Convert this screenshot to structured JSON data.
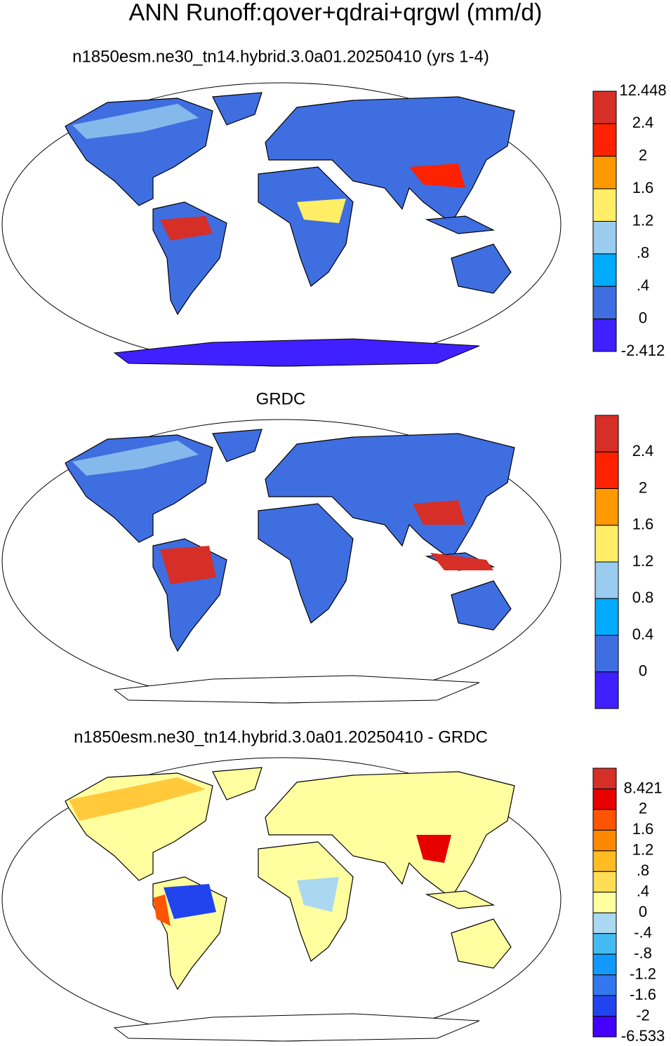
{
  "title": "ANN Runoff:qover+qdrai+qrgwl (mm/d)",
  "panels": [
    {
      "subtitle": "n1850esm.ne30_tn14.hybrid.3.0a01.20250410 (yrs 1-4)",
      "colorbar": {
        "labels": [
          "12.448",
          "2.4",
          "2",
          "1.6",
          "1.2",
          ".8",
          ".4",
          "0",
          "-2.412"
        ],
        "colors": [
          "#d62f27",
          "#ff2200",
          "#ff9900",
          "#ffee66",
          "#99ccee",
          "#00aaff",
          "#3f6ee0",
          "#4020ff"
        ]
      }
    },
    {
      "subtitle": "GRDC",
      "colorbar": {
        "labels": [
          "2.4",
          "2",
          "1.6",
          "1.2",
          "0.8",
          "0.4",
          "0"
        ],
        "colors": [
          "#d62f27",
          "#ff2200",
          "#ff9900",
          "#ffee66",
          "#99ccee",
          "#00aaff",
          "#3f6ee0",
          "#4020ff"
        ]
      }
    },
    {
      "subtitle": "n1850esm.ne30_tn14.hybrid.3.0a01.20250410 - GRDC",
      "colorbar": {
        "labels": [
          "8.421",
          "2",
          "1.6",
          "1.2",
          ".8",
          ".4",
          "0",
          "-.4",
          "-.8",
          "-1.2",
          "-1.6",
          "-2",
          "-6.533"
        ],
        "colors": [
          "#d62f27",
          "#e80000",
          "#ff5500",
          "#ff8800",
          "#ffbb22",
          "#ffdd55",
          "#ffffa0",
          "#aad8f0",
          "#44bbf0",
          "#1199ff",
          "#3377ee",
          "#2244ee",
          "#4400ff"
        ]
      }
    }
  ]
}
